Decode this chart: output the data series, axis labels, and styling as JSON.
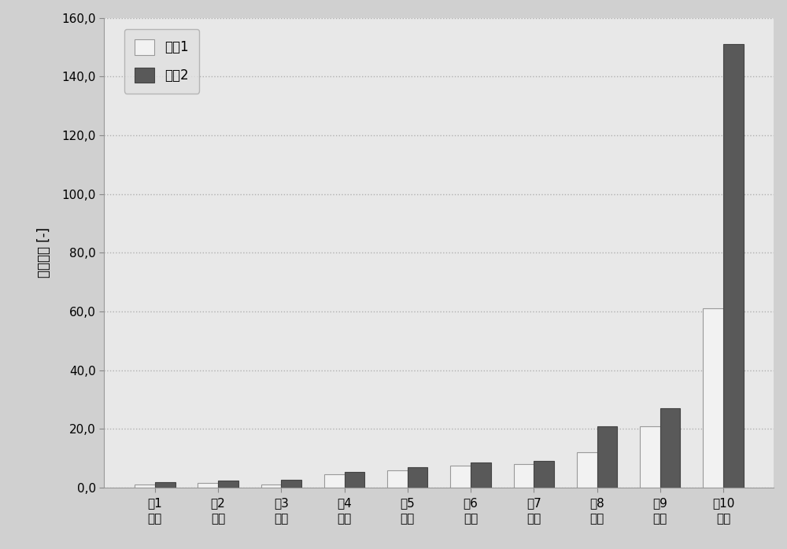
{
  "categories": [
    "第1\n循环",
    "第2\n循环",
    "第3\n循环",
    "第4\n循环",
    "第5\n循环",
    "第6\n循环",
    "第7\n循环",
    "第8\n循环",
    "第9\n循环",
    "第10\n循环"
  ],
  "sample1": [
    1.0,
    1.5,
    1.2,
    4.5,
    6.0,
    7.5,
    8.0,
    12.0,
    21.0,
    61.0
  ],
  "sample2": [
    2.0,
    2.5,
    2.8,
    5.5,
    7.0,
    8.5,
    9.0,
    21.0,
    27.0,
    151.0
  ],
  "color_sample1": "#f2f2f2",
  "color_sample2": "#595959",
  "ylabel": "净化因子 [-]",
  "ylim": [
    0,
    160
  ],
  "yticks": [
    0.0,
    20.0,
    40.0,
    60.0,
    80.0,
    100.0,
    120.0,
    140.0,
    160.0
  ],
  "legend_label1": "样哈1",
  "legend_label2": "样哈2",
  "bar_width": 0.32,
  "background_color": "#e8e8e8",
  "plot_bg_color": "#e8e8e8",
  "fig_bg_color": "#d0d0d0",
  "grid_color": "#b0b0b0",
  "label_fontsize": 12,
  "tick_fontsize": 11,
  "legend_fontsize": 12
}
